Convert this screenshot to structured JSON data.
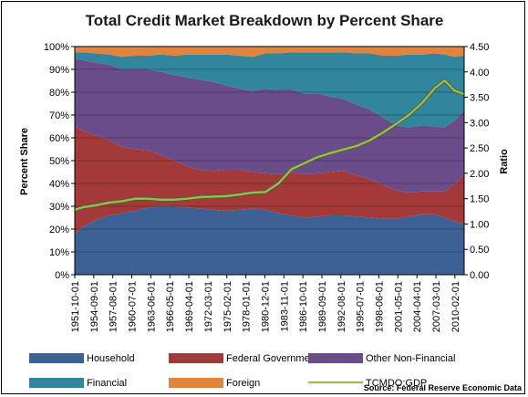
{
  "chart_data": {
    "type": "area",
    "title": "Total Credit Market Breakdown by Percent Share",
    "ylabel": "Percent Share",
    "y2label": "Ratio",
    "source": "Source: Federal Reserve Economic Data",
    "ylim": [
      0,
      100
    ],
    "y2lim": [
      0,
      4.5
    ],
    "yticks": [
      "0%",
      "10%",
      "20%",
      "30%",
      "40%",
      "50%",
      "60%",
      "70%",
      "80%",
      "90%",
      "100%"
    ],
    "y2ticks": [
      "0.00",
      "0.50",
      "1.00",
      "1.50",
      "2.00",
      "2.50",
      "3.00",
      "3.50",
      "4.00",
      "4.50"
    ],
    "xticks": [
      "1951-10-01",
      "1954-09-01",
      "1957-08-01",
      "1960-07-01",
      "1963-06-01",
      "1966-05-01",
      "1969-04-01",
      "1972-03-01",
      "1975-02-01",
      "1978-01-01",
      "1980-12-01",
      "1983-11-01",
      "1986-10-01",
      "1989-09-01",
      "1992-08-01",
      "1995-07-01",
      "1998-06-01",
      "2001-05-01",
      "2004-04-01",
      "2007-03-01",
      "2010-02-01"
    ],
    "x": [
      1951.75,
      1953,
      1955,
      1957,
      1959,
      1961,
      1963,
      1965,
      1967,
      1969,
      1971,
      1973,
      1975,
      1977,
      1979,
      1981,
      1983,
      1985,
      1987,
      1989,
      1991,
      1993,
      1995,
      1997,
      1999,
      2001,
      2003,
      2005,
      2007,
      2008.5,
      2010,
      2011.5
    ],
    "xlim": [
      1951.75,
      2011.5
    ],
    "grid": true,
    "legend_position": "bottom",
    "stack_order": [
      "Household",
      "Federal Government",
      "Other Non-Financial",
      "Financial",
      "Foreign"
    ],
    "series": [
      {
        "name": "Household",
        "type": "area",
        "axis": "left",
        "color": "#3C6295",
        "values": [
          18,
          21,
          24,
          26,
          27,
          28,
          29.5,
          30,
          30,
          29.5,
          29,
          28.5,
          28,
          28.5,
          29,
          28.5,
          27,
          26,
          25,
          25.5,
          26,
          26,
          25.5,
          25,
          24.5,
          24.5,
          25.5,
          26.5,
          26.5,
          25,
          23.5,
          22
        ]
      },
      {
        "name": "Federal Government",
        "type": "area",
        "axis": "left",
        "color": "#A33A39",
        "values": [
          47,
          42,
          37,
          33,
          29,
          27,
          25,
          22,
          20,
          18,
          17,
          17,
          18,
          17.5,
          16,
          16,
          17,
          19,
          19,
          19,
          19,
          19.5,
          18,
          17,
          15,
          12.5,
          10.5,
          10,
          10,
          11.5,
          16,
          22
        ]
      },
      {
        "name": "Other Non-Financial",
        "type": "area",
        "axis": "left",
        "color": "#6B4C8B",
        "values": [
          29.5,
          31,
          32,
          33,
          34,
          35,
          35.5,
          36.5,
          37.5,
          39,
          39.5,
          39,
          37,
          35.5,
          35.5,
          37,
          37,
          36,
          35.5,
          35,
          33,
          31.5,
          31,
          30.5,
          29.5,
          28.5,
          28.5,
          29,
          28.5,
          28,
          28,
          28
        ]
      },
      {
        "name": "Financial",
        "type": "area",
        "axis": "left",
        "color": "#31859C",
        "values": [
          3,
          3.5,
          4,
          4.5,
          5.5,
          6,
          6,
          7.5,
          8.5,
          10,
          11,
          12,
          13.5,
          14.5,
          15,
          15.5,
          16,
          16.5,
          18,
          18,
          19.5,
          20.5,
          22.5,
          24.5,
          27,
          30.5,
          32,
          31,
          32,
          32,
          28,
          24
        ]
      },
      {
        "name": "Foreign",
        "type": "area",
        "axis": "left",
        "color": "#E0843E",
        "values": [
          2.5,
          2.5,
          3,
          3.5,
          4.5,
          4,
          4,
          3.5,
          4,
          3.5,
          3.5,
          3.5,
          3.5,
          4,
          4.5,
          3,
          3,
          2.5,
          2.5,
          2.5,
          2.5,
          2.5,
          3,
          3,
          4,
          4,
          3.5,
          3.5,
          3,
          3.5,
          4.5,
          4
        ]
      },
      {
        "name": "TCMDO:GDP",
        "type": "line",
        "axis": "right",
        "color": "#9BBB59",
        "values": [
          1.28,
          1.33,
          1.37,
          1.42,
          1.45,
          1.5,
          1.5,
          1.48,
          1.48,
          1.5,
          1.53,
          1.54,
          1.55,
          1.58,
          1.62,
          1.63,
          1.8,
          2.08,
          2.2,
          2.32,
          2.4,
          2.47,
          2.54,
          2.65,
          2.8,
          2.97,
          3.15,
          3.38,
          3.68,
          3.83,
          3.63,
          3.56
        ]
      }
    ]
  }
}
